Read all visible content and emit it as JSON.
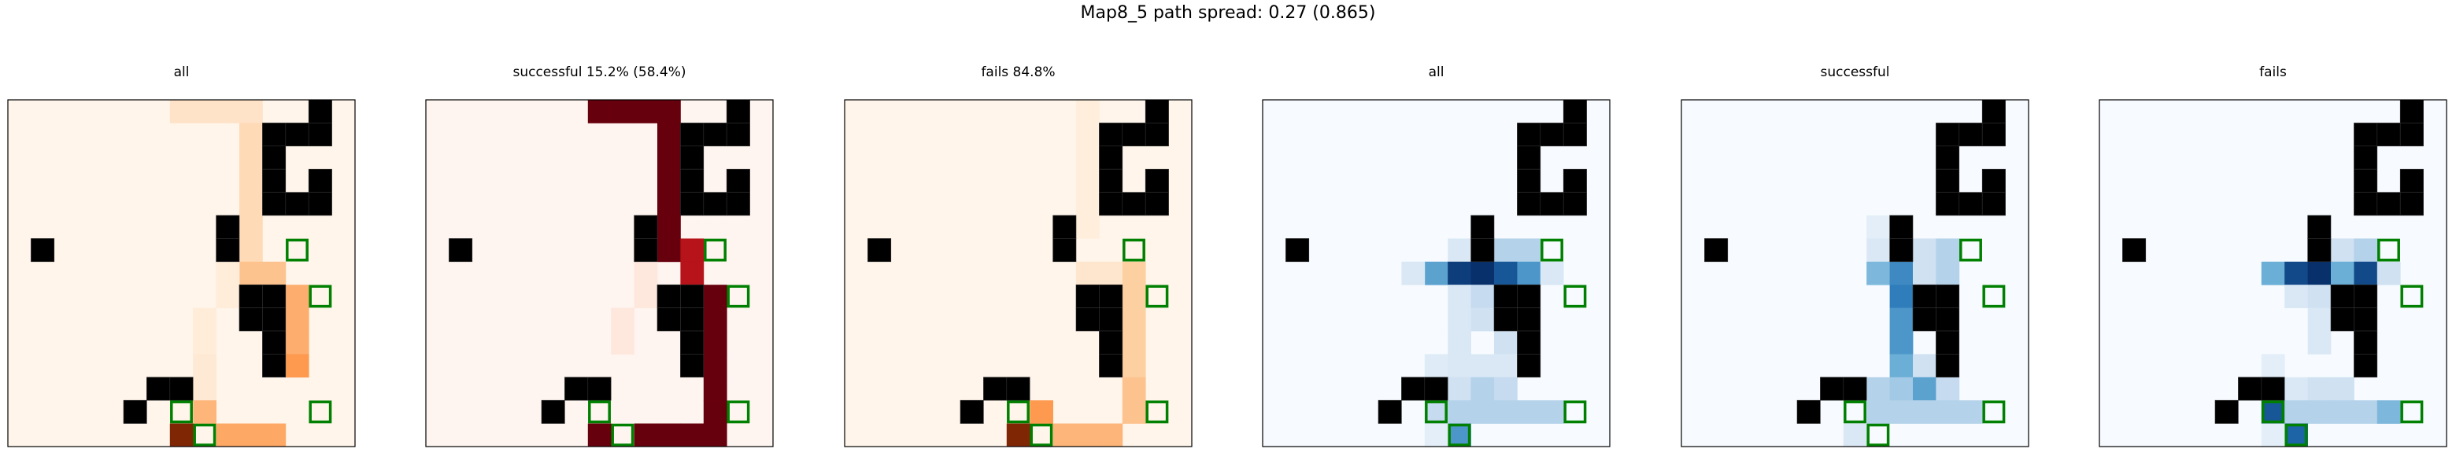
{
  "figure": {
    "title": "Map8_5 path spread: 0.27 (0.865)"
  },
  "chart_data": {
    "type": "heatmap",
    "grid": {
      "rows": 15,
      "cols": 15
    },
    "walls": [
      [
        0,
        13
      ],
      [
        1,
        11
      ],
      [
        1,
        12
      ],
      [
        1,
        13
      ],
      [
        2,
        11
      ],
      [
        3,
        11
      ],
      [
        3,
        13
      ],
      [
        4,
        11
      ],
      [
        4,
        12
      ],
      [
        4,
        13
      ],
      [
        5,
        9
      ],
      [
        6,
        1
      ],
      [
        6,
        9
      ],
      [
        8,
        10
      ],
      [
        8,
        11
      ],
      [
        9,
        10
      ],
      [
        9,
        11
      ],
      [
        10,
        11
      ],
      [
        11,
        11
      ],
      [
        12,
        6
      ],
      [
        12,
        7
      ],
      [
        13,
        5
      ]
    ],
    "goals": [
      [
        6,
        12
      ],
      [
        8,
        13
      ],
      [
        13,
        7
      ],
      [
        13,
        13
      ],
      [
        14,
        8
      ]
    ],
    "panels": [
      {
        "title": "all",
        "colormap": "Oranges",
        "cells": [
          [
            0,
            7,
            0.12
          ],
          [
            0,
            8,
            0.12
          ],
          [
            0,
            9,
            0.12
          ],
          [
            0,
            10,
            0.12
          ],
          [
            1,
            10,
            0.18
          ],
          [
            2,
            10,
            0.18
          ],
          [
            3,
            10,
            0.18
          ],
          [
            4,
            10,
            0.18
          ],
          [
            5,
            10,
            0.18
          ],
          [
            6,
            10,
            0.18
          ],
          [
            7,
            10,
            0.3
          ],
          [
            7,
            11,
            0.3
          ],
          [
            8,
            12,
            0.38
          ],
          [
            9,
            12,
            0.38
          ],
          [
            10,
            12,
            0.38
          ],
          [
            11,
            12,
            0.45
          ],
          [
            7,
            9,
            0.06
          ],
          [
            8,
            9,
            0.06
          ],
          [
            9,
            8,
            0.06
          ],
          [
            10,
            8,
            0.06
          ],
          [
            11,
            8,
            0.08
          ],
          [
            12,
            8,
            0.08
          ],
          [
            13,
            8,
            0.35
          ],
          [
            14,
            7,
            1.0
          ],
          [
            14,
            9,
            0.4
          ],
          [
            14,
            10,
            0.4
          ],
          [
            14,
            11,
            0.4
          ]
        ]
      },
      {
        "title": "successful 15.2% (58.4%)",
        "colormap": "Reds",
        "cells": [
          [
            0,
            7,
            1.0
          ],
          [
            0,
            8,
            1.0
          ],
          [
            0,
            9,
            1.0
          ],
          [
            0,
            10,
            1.0
          ],
          [
            1,
            10,
            1.0
          ],
          [
            2,
            10,
            1.0
          ],
          [
            3,
            10,
            1.0
          ],
          [
            4,
            10,
            1.0
          ],
          [
            5,
            10,
            1.0
          ],
          [
            6,
            10,
            1.0
          ],
          [
            6,
            11,
            0.8
          ],
          [
            7,
            11,
            0.8
          ],
          [
            8,
            12,
            1.0
          ],
          [
            9,
            12,
            1.0
          ],
          [
            10,
            12,
            1.0
          ],
          [
            11,
            12,
            1.0
          ],
          [
            12,
            12,
            1.0
          ],
          [
            13,
            12,
            1.0
          ],
          [
            14,
            7,
            1.0
          ],
          [
            14,
            9,
            1.0
          ],
          [
            14,
            10,
            1.0
          ],
          [
            14,
            11,
            1.0
          ],
          [
            14,
            12,
            1.0
          ],
          [
            7,
            9,
            0.06
          ],
          [
            8,
            9,
            0.06
          ],
          [
            9,
            8,
            0.06
          ],
          [
            10,
            8,
            0.06
          ]
        ]
      },
      {
        "title": "fails 84.8%",
        "colormap": "Oranges",
        "cells": [
          [
            0,
            10,
            0.05
          ],
          [
            1,
            10,
            0.05
          ],
          [
            2,
            10,
            0.05
          ],
          [
            3,
            10,
            0.05
          ],
          [
            4,
            10,
            0.05
          ],
          [
            5,
            10,
            0.05
          ],
          [
            7,
            10,
            0.1
          ],
          [
            7,
            11,
            0.1
          ],
          [
            7,
            12,
            0.25
          ],
          [
            8,
            12,
            0.25
          ],
          [
            9,
            12,
            0.25
          ],
          [
            10,
            12,
            0.25
          ],
          [
            11,
            12,
            0.25
          ],
          [
            12,
            12,
            0.3
          ],
          [
            13,
            12,
            0.3
          ],
          [
            13,
            8,
            0.45
          ],
          [
            14,
            7,
            1.0
          ],
          [
            14,
            9,
            0.35
          ],
          [
            14,
            10,
            0.35
          ],
          [
            14,
            11,
            0.35
          ]
        ]
      },
      {
        "title": "all",
        "colormap": "Blues",
        "cells": [
          [
            6,
            8,
            0.15
          ],
          [
            6,
            10,
            0.3
          ],
          [
            6,
            11,
            0.3
          ],
          [
            7,
            7,
            0.55
          ],
          [
            7,
            8,
            0.95
          ],
          [
            7,
            9,
            1.0
          ],
          [
            7,
            10,
            0.85
          ],
          [
            7,
            11,
            0.6
          ],
          [
            7,
            6,
            0.15
          ],
          [
            7,
            12,
            0.15
          ],
          [
            8,
            8,
            0.15
          ],
          [
            8,
            9,
            0.25
          ],
          [
            9,
            8,
            0.15
          ],
          [
            9,
            9,
            0.2
          ],
          [
            10,
            8,
            0.15
          ],
          [
            10,
            10,
            0.2
          ],
          [
            11,
            7,
            0.12
          ],
          [
            11,
            8,
            0.15
          ],
          [
            11,
            9,
            0.15
          ],
          [
            11,
            10,
            0.15
          ],
          [
            12,
            8,
            0.2
          ],
          [
            12,
            9,
            0.3
          ],
          [
            12,
            10,
            0.25
          ],
          [
            13,
            7,
            0.25
          ],
          [
            13,
            8,
            0.3
          ],
          [
            13,
            9,
            0.3
          ],
          [
            13,
            10,
            0.3
          ],
          [
            13,
            11,
            0.3
          ],
          [
            13,
            12,
            0.3
          ],
          [
            14,
            8,
            0.6
          ],
          [
            14,
            7,
            0.1
          ]
        ]
      },
      {
        "title": "successful",
        "colormap": "Blues",
        "cells": [
          [
            5,
            8,
            0.1
          ],
          [
            6,
            8,
            0.15
          ],
          [
            6,
            10,
            0.2
          ],
          [
            6,
            11,
            0.3
          ],
          [
            7,
            8,
            0.45
          ],
          [
            7,
            9,
            0.65
          ],
          [
            7,
            10,
            0.2
          ],
          [
            7,
            11,
            0.3
          ],
          [
            8,
            9,
            0.7
          ],
          [
            9,
            9,
            0.6
          ],
          [
            10,
            9,
            0.6
          ],
          [
            11,
            9,
            0.5
          ],
          [
            11,
            10,
            0.2
          ],
          [
            12,
            8,
            0.3
          ],
          [
            12,
            9,
            0.35
          ],
          [
            12,
            10,
            0.55
          ],
          [
            12,
            11,
            0.25
          ],
          [
            13,
            8,
            0.3
          ],
          [
            13,
            9,
            0.3
          ],
          [
            13,
            10,
            0.3
          ],
          [
            13,
            11,
            0.3
          ],
          [
            13,
            12,
            0.3
          ],
          [
            14,
            7,
            0.15
          ]
        ]
      },
      {
        "title": "fails",
        "colormap": "Blues",
        "cells": [
          [
            6,
            10,
            0.2
          ],
          [
            6,
            11,
            0.3
          ],
          [
            7,
            7,
            0.5
          ],
          [
            7,
            8,
            0.9
          ],
          [
            7,
            9,
            1.0
          ],
          [
            7,
            10,
            0.5
          ],
          [
            7,
            11,
            0.9
          ],
          [
            7,
            12,
            0.2
          ],
          [
            8,
            8,
            0.15
          ],
          [
            8,
            9,
            0.2
          ],
          [
            9,
            9,
            0.15
          ],
          [
            10,
            9,
            0.15
          ],
          [
            11,
            7,
            0.1
          ],
          [
            12,
            8,
            0.15
          ],
          [
            12,
            9,
            0.2
          ],
          [
            12,
            10,
            0.2
          ],
          [
            13,
            7,
            0.85
          ],
          [
            13,
            8,
            0.3
          ],
          [
            13,
            9,
            0.3
          ],
          [
            13,
            10,
            0.3
          ],
          [
            13,
            11,
            0.3
          ],
          [
            13,
            12,
            0.45
          ],
          [
            14,
            8,
            0.8
          ],
          [
            14,
            7,
            0.1
          ]
        ]
      }
    ]
  }
}
